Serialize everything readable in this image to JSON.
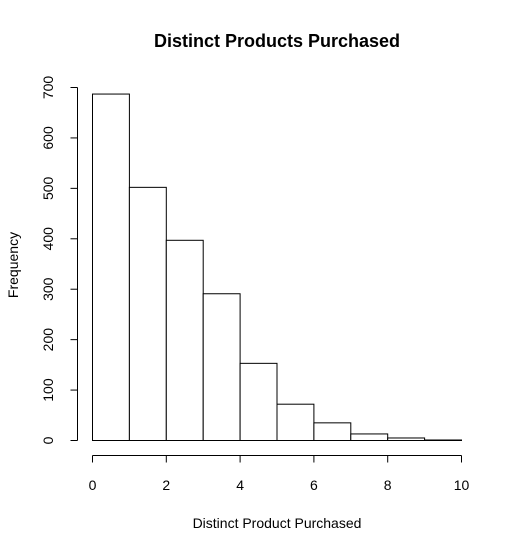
{
  "chart_data": {
    "type": "histogram",
    "title": "Distinct Products Purchased",
    "xlabel": "Distinct Product Purchased",
    "ylabel": "Frequency",
    "bins": [
      {
        "start": 0,
        "end": 1,
        "count": 687
      },
      {
        "start": 1,
        "end": 2,
        "count": 502
      },
      {
        "start": 2,
        "end": 3,
        "count": 397
      },
      {
        "start": 3,
        "end": 4,
        "count": 291
      },
      {
        "start": 4,
        "end": 5,
        "count": 153
      },
      {
        "start": 5,
        "end": 6,
        "count": 72
      },
      {
        "start": 6,
        "end": 7,
        "count": 35
      },
      {
        "start": 7,
        "end": 8,
        "count": 13
      },
      {
        "start": 8,
        "end": 9,
        "count": 5
      },
      {
        "start": 9,
        "end": 10,
        "count": 1
      }
    ],
    "xlim": [
      0,
      10
    ],
    "ylim": [
      0,
      700
    ],
    "x_ticks": [
      0,
      2,
      4,
      6,
      8,
      10
    ],
    "y_ticks": [
      0,
      100,
      200,
      300,
      400,
      500,
      600,
      700
    ],
    "grid": false,
    "colors": {
      "bar_fill": "#ffffff",
      "bar_stroke": "#000000",
      "axis": "#000000"
    }
  }
}
